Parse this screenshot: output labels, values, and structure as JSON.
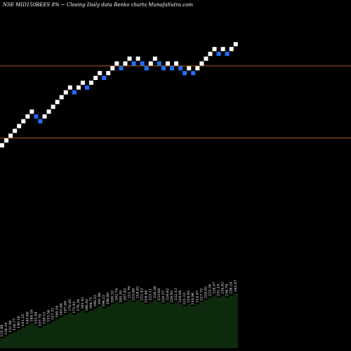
{
  "chart_data": {
    "type": "renko",
    "title": "NSE MID150BEES 8% ~  Closing Daily data  Renko  charts MunafaSutra.com",
    "colors": {
      "background": "#000000",
      "up_brick": "#ffffff",
      "down_brick": "#1f6fff",
      "reference_line": "#b05a1a",
      "volume_area": "#0d2a0d"
    },
    "reference_lines": [
      {
        "value": 225
      },
      {
        "value": 135
      }
    ],
    "bricks": [
      {
        "dir": "up",
        "level": 126
      },
      {
        "dir": "up",
        "level": 132
      },
      {
        "dir": "up",
        "level": 138
      },
      {
        "dir": "up",
        "level": 144
      },
      {
        "dir": "up",
        "level": 150
      },
      {
        "dir": "up",
        "level": 156
      },
      {
        "dir": "up",
        "level": 162
      },
      {
        "dir": "up",
        "level": 168
      },
      {
        "dir": "down",
        "level": 162
      },
      {
        "dir": "down",
        "level": 156
      },
      {
        "dir": "up",
        "level": 162
      },
      {
        "dir": "up",
        "level": 168
      },
      {
        "dir": "up",
        "level": 174
      },
      {
        "dir": "up",
        "level": 180
      },
      {
        "dir": "up",
        "level": 186
      },
      {
        "dir": "up",
        "level": 192
      },
      {
        "dir": "up",
        "level": 198
      },
      {
        "dir": "down",
        "level": 192
      },
      {
        "dir": "up",
        "level": 198
      },
      {
        "dir": "up",
        "level": 204
      },
      {
        "dir": "down",
        "level": 198
      },
      {
        "dir": "up",
        "level": 204
      },
      {
        "dir": "up",
        "level": 210
      },
      {
        "dir": "up",
        "level": 216
      },
      {
        "dir": "down",
        "level": 210
      },
      {
        "dir": "up",
        "level": 216
      },
      {
        "dir": "up",
        "level": 222
      },
      {
        "dir": "up",
        "level": 228
      },
      {
        "dir": "down",
        "level": 222
      },
      {
        "dir": "up",
        "level": 228
      },
      {
        "dir": "up",
        "level": 234
      },
      {
        "dir": "down",
        "level": 228
      },
      {
        "dir": "up",
        "level": 234
      },
      {
        "dir": "down",
        "level": 228
      },
      {
        "dir": "down",
        "level": 222
      },
      {
        "dir": "up",
        "level": 228
      },
      {
        "dir": "up",
        "level": 234
      },
      {
        "dir": "down",
        "level": 228
      },
      {
        "dir": "down",
        "level": 222
      },
      {
        "dir": "up",
        "level": 228
      },
      {
        "dir": "down",
        "level": 222
      },
      {
        "dir": "up",
        "level": 228
      },
      {
        "dir": "down",
        "level": 222
      },
      {
        "dir": "down",
        "level": 216
      },
      {
        "dir": "up",
        "level": 222
      },
      {
        "dir": "down",
        "level": 216
      },
      {
        "dir": "up",
        "level": 222
      },
      {
        "dir": "up",
        "level": 228
      },
      {
        "dir": "up",
        "level": 234
      },
      {
        "dir": "up",
        "level": 240
      },
      {
        "dir": "up",
        "level": 246
      },
      {
        "dir": "down",
        "level": 240
      },
      {
        "dir": "up",
        "level": 246
      },
      {
        "dir": "down",
        "level": 240
      },
      {
        "dir": "up",
        "level": 246
      },
      {
        "dir": "up",
        "level": 252
      }
    ],
    "volume_labels": [
      "125.88",
      "126.34",
      "131.96",
      "136.77",
      "140.16",
      "141.25",
      "145.09",
      "149.19",
      "152.94",
      "157.70",
      "156.13",
      "153.56",
      "157.32",
      "160.54",
      "165.68",
      "167.09",
      "170.05",
      "173.81",
      "178.26",
      "181.41",
      "186.03",
      "184.71",
      "189.52",
      "191.86",
      "194.15",
      "196.80",
      "200.32",
      "202.74",
      "205.10",
      "207.43",
      "211.79",
      "215.69",
      "218.92",
      "222.43",
      "219.48",
      "223.11",
      "226.38",
      "223.64",
      "220.57",
      "224.62",
      "226.92",
      "222.13",
      "219.04",
      "221.23",
      "218.85",
      "216.96",
      "214.47",
      "217.75",
      "220.02",
      "223.36",
      "226.57",
      "231.19",
      "234.62",
      "236.79",
      "238.24",
      "243.07"
    ]
  }
}
